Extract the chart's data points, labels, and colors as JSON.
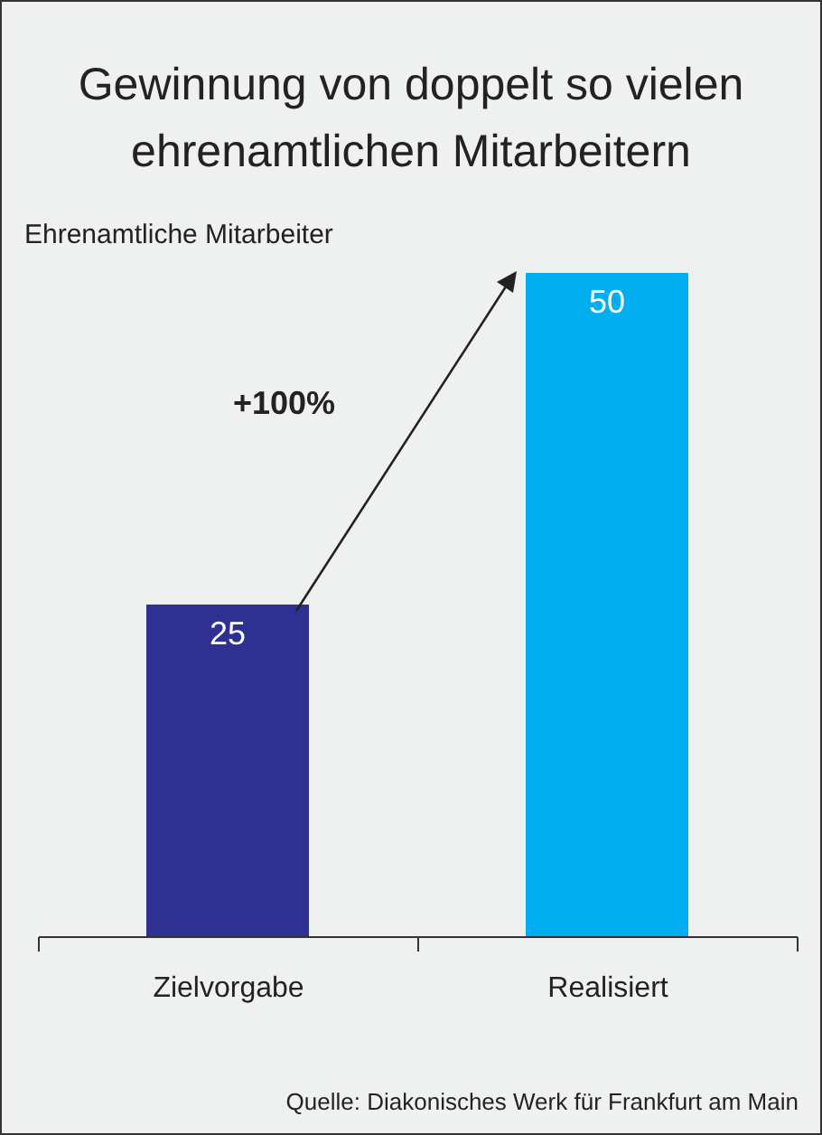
{
  "chart_data": {
    "type": "bar",
    "title": "Gewinnung von doppelt so vielen ehrenamtlichen Mitarbeitern",
    "ylabel": "Ehrenamtliche Mitarbeiter",
    "categories": [
      "Zielvorgabe",
      "Realisiert"
    ],
    "values": [
      25,
      50
    ],
    "colors": [
      "#2e3192",
      "#00aeef"
    ],
    "data_labels": true,
    "annotations": [
      "+100%",
      "Quelle: Diakonisches Werk für Frankfurt am Main"
    ]
  }
}
